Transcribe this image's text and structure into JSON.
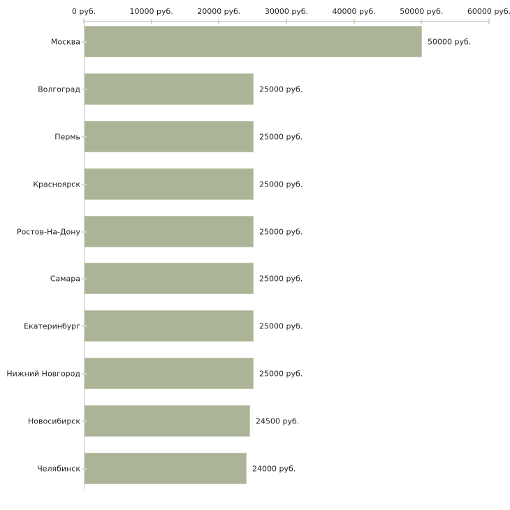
{
  "chart_data": {
    "type": "bar",
    "orientation": "horizontal",
    "unit": "руб.",
    "categories": [
      "Москва",
      "Волгоград",
      "Пермь",
      "Красноярск",
      "Ростов-На-Дону",
      "Самара",
      "Екатеринбург",
      "Нижний Новгород",
      "Новосибирск",
      "Челябинск"
    ],
    "values": [
      50000,
      25000,
      25000,
      25000,
      25000,
      25000,
      25000,
      25000,
      24500,
      24000
    ],
    "value_labels": [
      "50000 руб.",
      "25000 руб.",
      "25000 руб.",
      "25000 руб.",
      "25000 руб.",
      "25000 руб.",
      "25000 руб.",
      "25000 руб.",
      "24500 руб.",
      "24000 руб."
    ],
    "x_ticks": [
      {
        "value": 0,
        "label": "0 руб."
      },
      {
        "value": 10000,
        "label": "10000 руб."
      },
      {
        "value": 20000,
        "label": "20000 руб."
      },
      {
        "value": 30000,
        "label": "30000 руб."
      },
      {
        "value": 40000,
        "label": "40000 руб."
      },
      {
        "value": 50000,
        "label": "50000 руб."
      },
      {
        "value": 60000,
        "label": "60000 руб."
      }
    ],
    "xlim": [
      0,
      60000
    ],
    "grid": false,
    "legend": false,
    "axis_position": "top",
    "colors": {
      "bar": "#acb497",
      "bar_border": "#c6ccb2",
      "axis": "#c8c8c8",
      "tick": "#d6d6b6",
      "text": "#222222",
      "background": "#ffffff"
    }
  }
}
